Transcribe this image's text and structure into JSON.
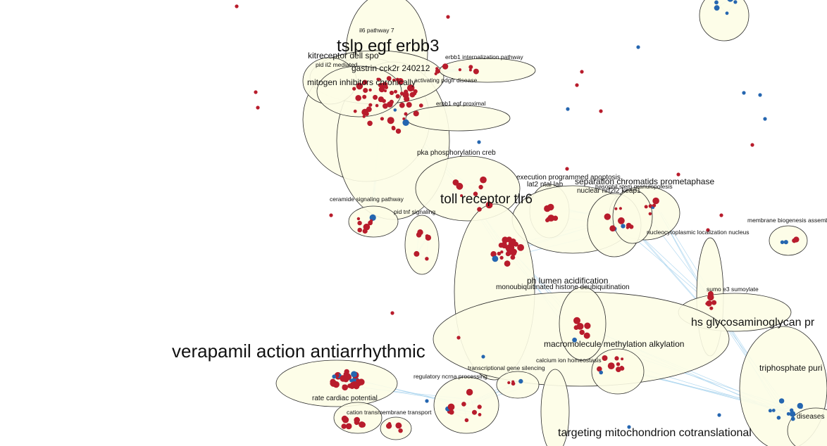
{
  "colors": {
    "upregulated_node": "#b81c2c",
    "downregulated_node": "#2566b0",
    "cluster_fill": "#fdfde6",
    "edge": "#a7d3ee"
  },
  "labels": {
    "il6": "il6 pathway 7",
    "tslp": "tslp egf erbb3",
    "kit": "kitreceptor dell spo",
    "il2": "pid il2 mediated",
    "gastrin": "gastrin cck2r 240212",
    "erbb1_intern": "erbb1 internalization pathway",
    "pdgfr": "activating pdgfr disease",
    "mitogen": "mitogen inhibitors chronically",
    "erbb1_egf": "erbb1 egf proximal",
    "pka": "pka phosphorylation creb",
    "exec": "execution programmed apoptosis",
    "lat2": "lat2 ntal lab",
    "separation": "separation chromatids prometaphase",
    "basophil": "basophil stem granulopoiesis",
    "nrf2": "nuclear nrf2l2 keap1",
    "toll": "toll receptor tlr6",
    "ceramide": "ceramide signaling pathway",
    "tnf": "pid tnf signaling",
    "membrane": "membrane biogenesis assembly",
    "nucleocyto": "nucleocytoplasmic localization nucleus",
    "ph": "ph lumen acidification",
    "monoubiq": "monoubiquitinated histone deubiquitination",
    "sumo": "sumo e3 sumoylate",
    "hs": "hs glycosaminoglycan pr",
    "verapamil": "verapamil action antiarrhythmic",
    "macro": "macromolecule methylation alkylation",
    "calcium": "calcium ion homeostasis",
    "transcriptional": "transcriptional gene silencing",
    "ncrna": "regulatory ncrna processing",
    "triphosphate": "triphosphate puri",
    "rate": "rate cardiac potential",
    "cation": "cation transmembrane transport",
    "diseases": "diseases",
    "targeting": "targeting mitochondrion cotranslational"
  }
}
